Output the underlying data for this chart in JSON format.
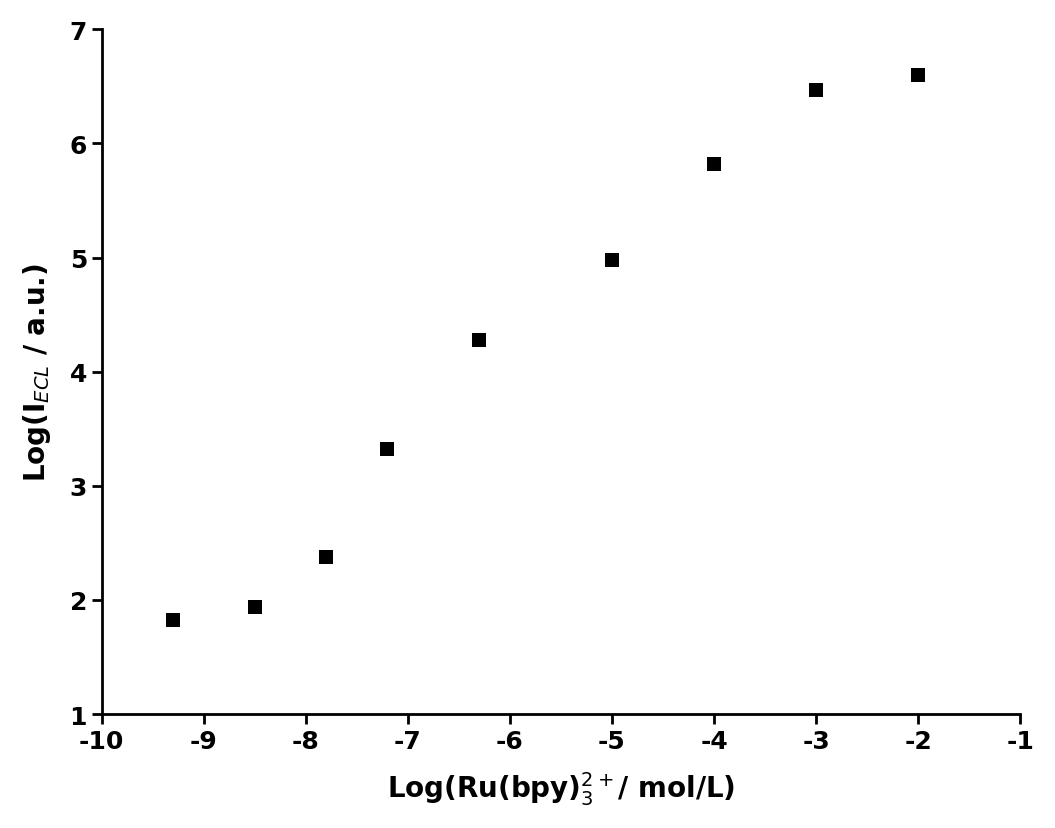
{
  "x": [
    -9.3,
    -8.5,
    -7.8,
    -7.2,
    -6.3,
    -5.0,
    -4.0,
    -3.0,
    -2.0
  ],
  "y": [
    1.82,
    1.94,
    2.38,
    3.32,
    4.28,
    4.98,
    5.82,
    6.47,
    6.6
  ],
  "marker": "s",
  "marker_size": 10,
  "marker_color": "black",
  "xlim": [
    -10,
    -1
  ],
  "ylim": [
    1,
    7
  ],
  "xticks": [
    -10,
    -9,
    -8,
    -7,
    -6,
    -5,
    -4,
    -3,
    -2,
    -1
  ],
  "yticks": [
    1,
    2,
    3,
    4,
    5,
    6,
    7
  ],
  "xlabel": "Log(Ru(bpy)$_3^{2+}$/ mol/L)",
  "ylabel": "Log(I$_{ECL}$ / a.u.)",
  "xlabel_fontsize": 20,
  "ylabel_fontsize": 20,
  "tick_fontsize": 18,
  "background_color": "#ffffff",
  "figure_width": 10.55,
  "figure_height": 8.29,
  "dpi": 100
}
